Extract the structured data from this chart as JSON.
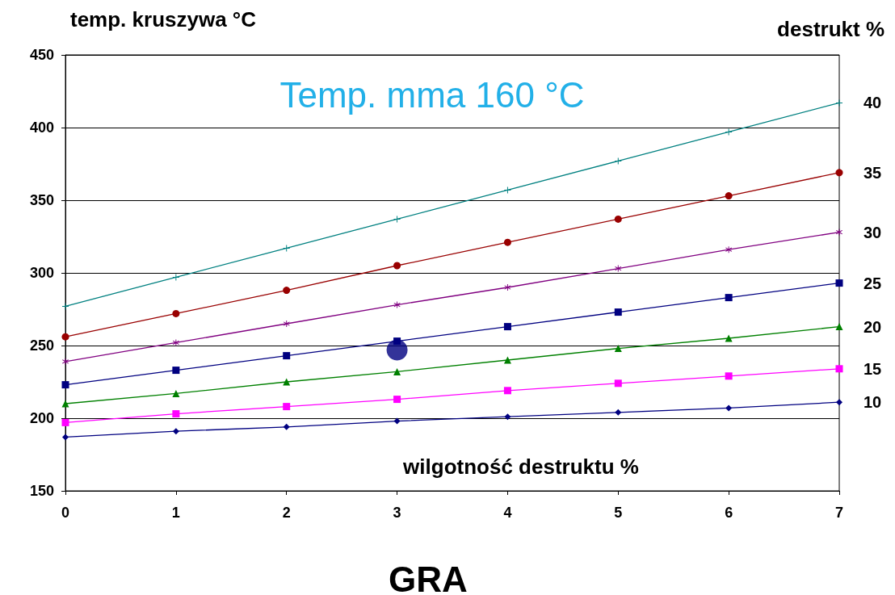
{
  "chart_data": {
    "type": "line",
    "title": "Temp. mma 160 °C",
    "xlabel": "wilgotność destruktu %",
    "ylabel": "temp. kruszywa °C",
    "legend_title": "destrukt %",
    "annotations": [
      "GRA"
    ],
    "x": [
      0,
      1,
      2,
      3,
      4,
      5,
      6,
      7
    ],
    "xlim": [
      0,
      7
    ],
    "xticks": [
      0,
      1,
      2,
      3,
      4,
      5,
      6,
      7
    ],
    "ylim": [
      150,
      450
    ],
    "yticks": [
      150,
      200,
      250,
      300,
      350,
      400,
      450
    ],
    "grid": "y",
    "legend": false,
    "series": [
      {
        "name": "40",
        "color": "#008080",
        "marker": "cross",
        "values": [
          277,
          297,
          317,
          337,
          357,
          377,
          397,
          417
        ]
      },
      {
        "name": "35",
        "color": "#990000",
        "marker": "circle",
        "values": [
          256,
          272,
          288,
          305,
          321,
          337,
          353,
          369
        ]
      },
      {
        "name": "30",
        "color": "#800080",
        "marker": "star",
        "values": [
          239,
          252,
          265,
          278,
          290,
          303,
          316,
          328
        ]
      },
      {
        "name": "25",
        "color": "#000080",
        "marker": "square",
        "values": [
          223,
          233,
          243,
          253,
          263,
          273,
          283,
          293
        ]
      },
      {
        "name": "20",
        "color": "#008000",
        "marker": "triangle",
        "values": [
          210,
          217,
          225,
          232,
          240,
          248,
          255,
          263
        ]
      },
      {
        "name": "15",
        "color": "#ff00ff",
        "marker": "square",
        "values": [
          197,
          203,
          208,
          213,
          219,
          224,
          229,
          234
        ]
      },
      {
        "name": "10",
        "color": "#000080",
        "marker": "diamond",
        "values": [
          187,
          191,
          194,
          198,
          201,
          204,
          207,
          211
        ]
      },
      {
        "type": "scatter",
        "color": "#000080",
        "marker": "circle",
        "x": [
          3
        ],
        "values": [
          247
        ]
      }
    ]
  }
}
